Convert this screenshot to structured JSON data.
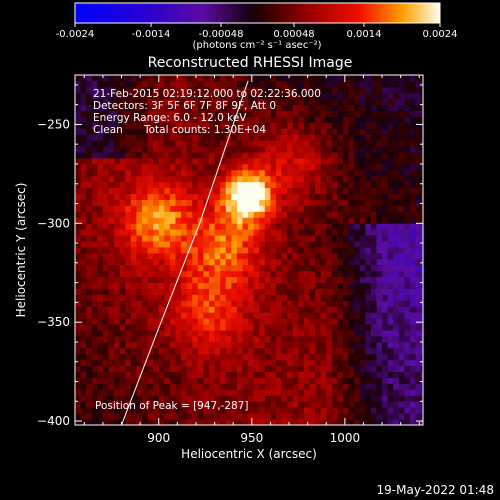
{
  "colorbar": {
    "ticks": [
      -0.0024,
      -0.0014,
      -0.00048,
      0.00048,
      0.0014,
      0.0024
    ],
    "tick_labels": [
      "-0.0024",
      "-0.0014",
      "-0.00048",
      "0.00048",
      "0.0014",
      "0.0024"
    ],
    "range": [
      -0.0024,
      0.0024
    ],
    "unit_label": "(photons cm⁻² s⁻¹ asec⁻²)"
  },
  "chart_data": {
    "type": "heatmap",
    "title": "Reconstructed RHESSI Image",
    "xlabel": "Heliocentric X (arcsec)",
    "ylabel": "Heliocentric Y (arcsec)",
    "xlim": [
      855,
      1042
    ],
    "ylim": [
      -402,
      -225
    ],
    "xticks": [
      900,
      950,
      1000
    ],
    "yticks": [
      -250,
      -300,
      -350,
      -400
    ],
    "xtick_labels": [
      "900",
      "950",
      "1000"
    ],
    "ytick_labels": [
      "−250",
      "−300",
      "−350",
      "−400"
    ],
    "value_range": [
      -0.0024,
      0.0024
    ],
    "peak": {
      "x": 947,
      "y": -287
    },
    "sources": [
      {
        "x": 947,
        "y": -287,
        "value": 0.0024
      },
      {
        "x": 898,
        "y": -300,
        "value": 0.0013
      },
      {
        "x": 935,
        "y": -312,
        "value": 0.0011
      },
      {
        "x": 925,
        "y": -345,
        "value": 0.0009
      },
      {
        "x": 972,
        "y": -270,
        "value": 0.0008
      }
    ],
    "limb_line": [
      [
        880,
        -402
      ],
      [
        900,
        -353
      ],
      [
        922,
        -300
      ],
      [
        940,
        -250
      ],
      [
        948,
        -228
      ]
    ],
    "annotations": {
      "time": "21-Feb-2015 02:19:12.000 to 02:22:36.000",
      "detectors": "Detectors: 3F 5F 6F 7F 8F 9F, Att 0",
      "energy": "Energy Range: 6.0 - 12.0 keV",
      "clean": "Clean",
      "counts": "Total counts: 1.30E+04",
      "peak_label": "Position of Peak = [947,-287]"
    }
  },
  "footer": {
    "date": "19-May-2022 01:48"
  }
}
